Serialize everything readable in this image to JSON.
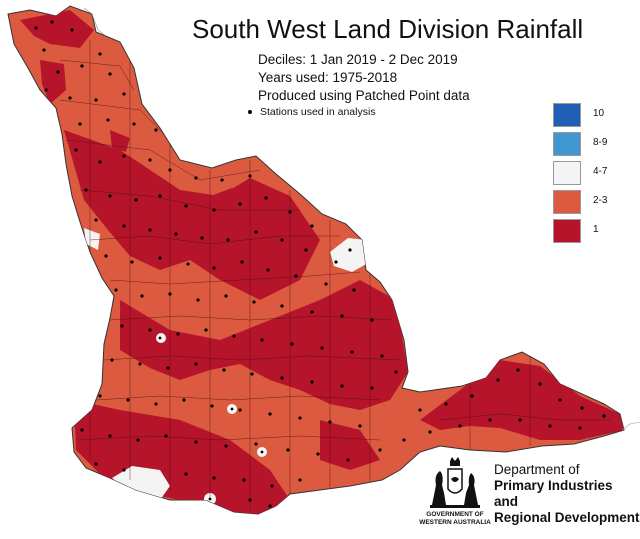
{
  "title": "South West Land Division Rainfall",
  "deciles_line": "Deciles:  1 Jan 2019 -  2 Dec 2019",
  "years_line": "Years used: 1975-2018",
  "patched_line": "Produced using Patched Point data",
  "stations_note": "Stations used in analysis",
  "legend": [
    {
      "label": "10",
      "color": "#1f5fb5"
    },
    {
      "label": "8-9",
      "color": "#3f96d0"
    },
    {
      "label": "4-7",
      "color": "#f4f4f4"
    },
    {
      "label": "2-3",
      "color": "#dc5b40"
    },
    {
      "label": "1",
      "color": "#b6142a"
    }
  ],
  "department": {
    "line1": "Department of",
    "line2": "Primary Industries and",
    "line3": "Regional Development"
  },
  "government": {
    "line1": "GOVERNMENT OF",
    "line2": "WESTERN AUSTRALIA"
  }
}
